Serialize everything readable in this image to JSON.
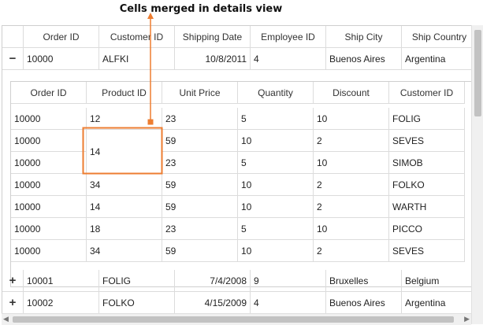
{
  "callout": {
    "label": "Cells merged in details view",
    "color": "#ed7d31"
  },
  "parent_columns": [
    "Order ID",
    "Customer ID",
    "Shipping Date",
    "Employee ID",
    "Ship City",
    "Ship Country"
  ],
  "parent_rows": [
    {
      "expander": "−",
      "order_id": "10000",
      "customer_id": "ALFKI",
      "shipping_date": "10/8/2011",
      "employee_id": "4",
      "ship_city": "Buenos Aires",
      "ship_country": "Argentina"
    },
    {
      "expander": "+",
      "order_id": "10001",
      "customer_id": "FOLIG",
      "shipping_date": "7/4/2008",
      "employee_id": "9",
      "ship_city": "Bruxelles",
      "ship_country": "Belgium"
    },
    {
      "expander": "+",
      "order_id": "10002",
      "customer_id": "FOLKO",
      "shipping_date": "4/15/2009",
      "employee_id": "4",
      "ship_city": "Buenos Aires",
      "ship_country": "Argentina"
    }
  ],
  "detail_columns": [
    "Order ID",
    "Product ID",
    "Unit Price",
    "Quantity",
    "Discount",
    "Customer ID"
  ],
  "detail_rows": [
    {
      "order_id": "10000",
      "product_id": "12",
      "unit_price": "23",
      "quantity": "5",
      "discount": "10",
      "customer_id": "FOLIG"
    },
    {
      "order_id": "10000",
      "product_id": "14",
      "unit_price": "59",
      "quantity": "10",
      "discount": "2",
      "customer_id": "SEVES"
    },
    {
      "order_id": "10000",
      "product_id": "",
      "unit_price": "23",
      "quantity": "5",
      "discount": "10",
      "customer_id": "SIMOB"
    },
    {
      "order_id": "10000",
      "product_id": "34",
      "unit_price": "59",
      "quantity": "10",
      "discount": "2",
      "customer_id": "FOLKO"
    },
    {
      "order_id": "10000",
      "product_id": "14",
      "unit_price": "59",
      "quantity": "10",
      "discount": "2",
      "customer_id": "WARTH"
    },
    {
      "order_id": "10000",
      "product_id": "18",
      "unit_price": "23",
      "quantity": "5",
      "discount": "10",
      "customer_id": "PICCO"
    },
    {
      "order_id": "10000",
      "product_id": "34",
      "unit_price": "59",
      "quantity": "10",
      "discount": "2",
      "customer_id": "SEVES"
    }
  ],
  "merged_cell_value": "14"
}
